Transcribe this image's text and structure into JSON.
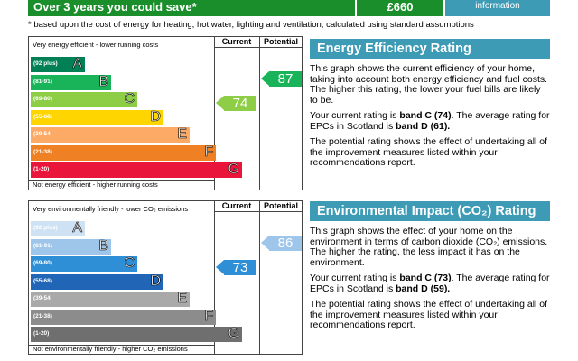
{
  "top": {
    "save_label": "Over 3 years you could save*",
    "save_amount": "£660",
    "info_label": "information"
  },
  "footnote": "* based upon the cost of energy for heating, hot water, lighting and ventilation, calculated using standard assumptions",
  "energy": {
    "current_header": "Current",
    "potential_header": "Potential",
    "top_label": "Very energy efficient - lower running costs",
    "bottom_label": "Not energy efficient - higher running costs",
    "current_value": "74",
    "potential_value": "87",
    "bands": [
      {
        "range": "(92 plus)",
        "letter": "A",
        "color": "#008054"
      },
      {
        "range": "(81-91)",
        "letter": "B",
        "color": "#19b459"
      },
      {
        "range": "(69-80)",
        "letter": "C",
        "color": "#8dce46"
      },
      {
        "range": "(55-68)",
        "letter": "D",
        "color": "#ffd500"
      },
      {
        "range": "(39-54",
        "letter": "E",
        "color": "#fcaa65"
      },
      {
        "range": "(21-38)",
        "letter": "F",
        "color": "#ef8023"
      },
      {
        "range": "(1-20)",
        "letter": "G",
        "color": "#e9153b"
      }
    ],
    "colors": {
      "current": "#8dce46",
      "potential": "#19b459"
    }
  },
  "env": {
    "current_header": "Current",
    "potential_header": "Potential",
    "top_label": "Very environmentally friendly - lower CO₂ emissions",
    "bottom_label": "Not environmentally friendly - higher CO₂ emissions",
    "current_value": "73",
    "potential_value": "86",
    "bands": [
      {
        "range": "(92 plus)",
        "letter": "A",
        "color": "#cfe2f3"
      },
      {
        "range": "(81-91)",
        "letter": "B",
        "color": "#9ec5ea"
      },
      {
        "range": "(69-80)",
        "letter": "C",
        "color": "#2f8fd6"
      },
      {
        "range": "(55-68)",
        "letter": "D",
        "color": "#2166b6"
      },
      {
        "range": "(39-54",
        "letter": "E",
        "color": "#a9a9a9"
      },
      {
        "range": "(21-38)",
        "letter": "F",
        "color": "#8c8c8c"
      },
      {
        "range": "(1-20)",
        "letter": "G",
        "color": "#6f6f6f"
      }
    ],
    "colors": {
      "current": "#2f8fd6",
      "potential": "#9ec5ea"
    }
  },
  "eer": {
    "title": "Energy Efficiency Rating",
    "p1": "This graph shows the current efficiency of your home, taking into account both energy efficiency and fuel costs. The higher this rating, the lower your fuel bills are likely to be.",
    "p2_pre": "Your current rating is ",
    "p2_band": "band C (74)",
    "p2_mid": ". The average rating for EPCs in Scotland is ",
    "p2_avg": "band D (61).",
    "p3": "The potential rating shows the effect of undertaking all of the improvement measures listed within your recommendations report."
  },
  "eir": {
    "title": "Environmental Impact (CO₂) Rating",
    "p1": "This graph shows the effect of your home on the environment in terms of carbon dioxide (CO₂) emissions. The higher the rating, the less impact it has on the environment.",
    "p2_pre": "Your current rating is ",
    "p2_band": "band C (73)",
    "p2_mid": ". The average rating for EPCs in Scotland is ",
    "p2_avg": "band D (59).",
    "p3": "The potential rating shows the effect of undertaking all of the improvement measures listed within your recommendations report."
  }
}
